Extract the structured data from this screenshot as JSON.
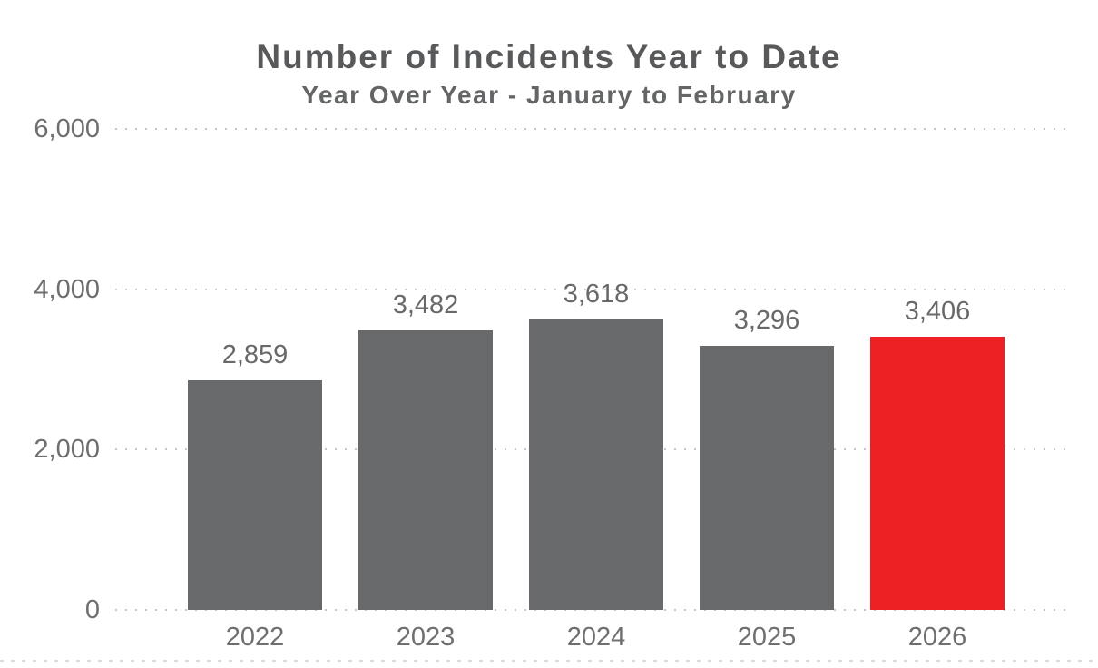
{
  "chart_data": {
    "type": "bar",
    "title": "Number of Incidents Year to Date",
    "subtitle": "Year Over Year - January to February",
    "categories": [
      "2022",
      "2023",
      "2024",
      "2025",
      "2026"
    ],
    "values": [
      2859,
      3482,
      3618,
      3296,
      3406
    ],
    "value_labels": [
      "2,859",
      "3,482",
      "3,618",
      "3,296",
      "3,406"
    ],
    "bar_colors": [
      "#67696B",
      "#67696B",
      "#67696B",
      "#67696B",
      "#ED2024"
    ],
    "ylim": [
      0,
      6000
    ],
    "yticks": [
      0,
      2000,
      4000,
      6000
    ],
    "ytick_labels": [
      "0",
      "2,000",
      "4,000",
      "6,000"
    ],
    "xlabel": "",
    "ylabel": "",
    "legend": "none",
    "grid": "horizontal-dotted",
    "colors": {
      "bar_default": "#67696B",
      "bar_highlight": "#ED2024",
      "title_text": "#58595B",
      "axis_text": "#6E6F71",
      "value_text": "#68696B",
      "gridline": "#C3C3C3",
      "background": "#FFFFFF"
    }
  }
}
